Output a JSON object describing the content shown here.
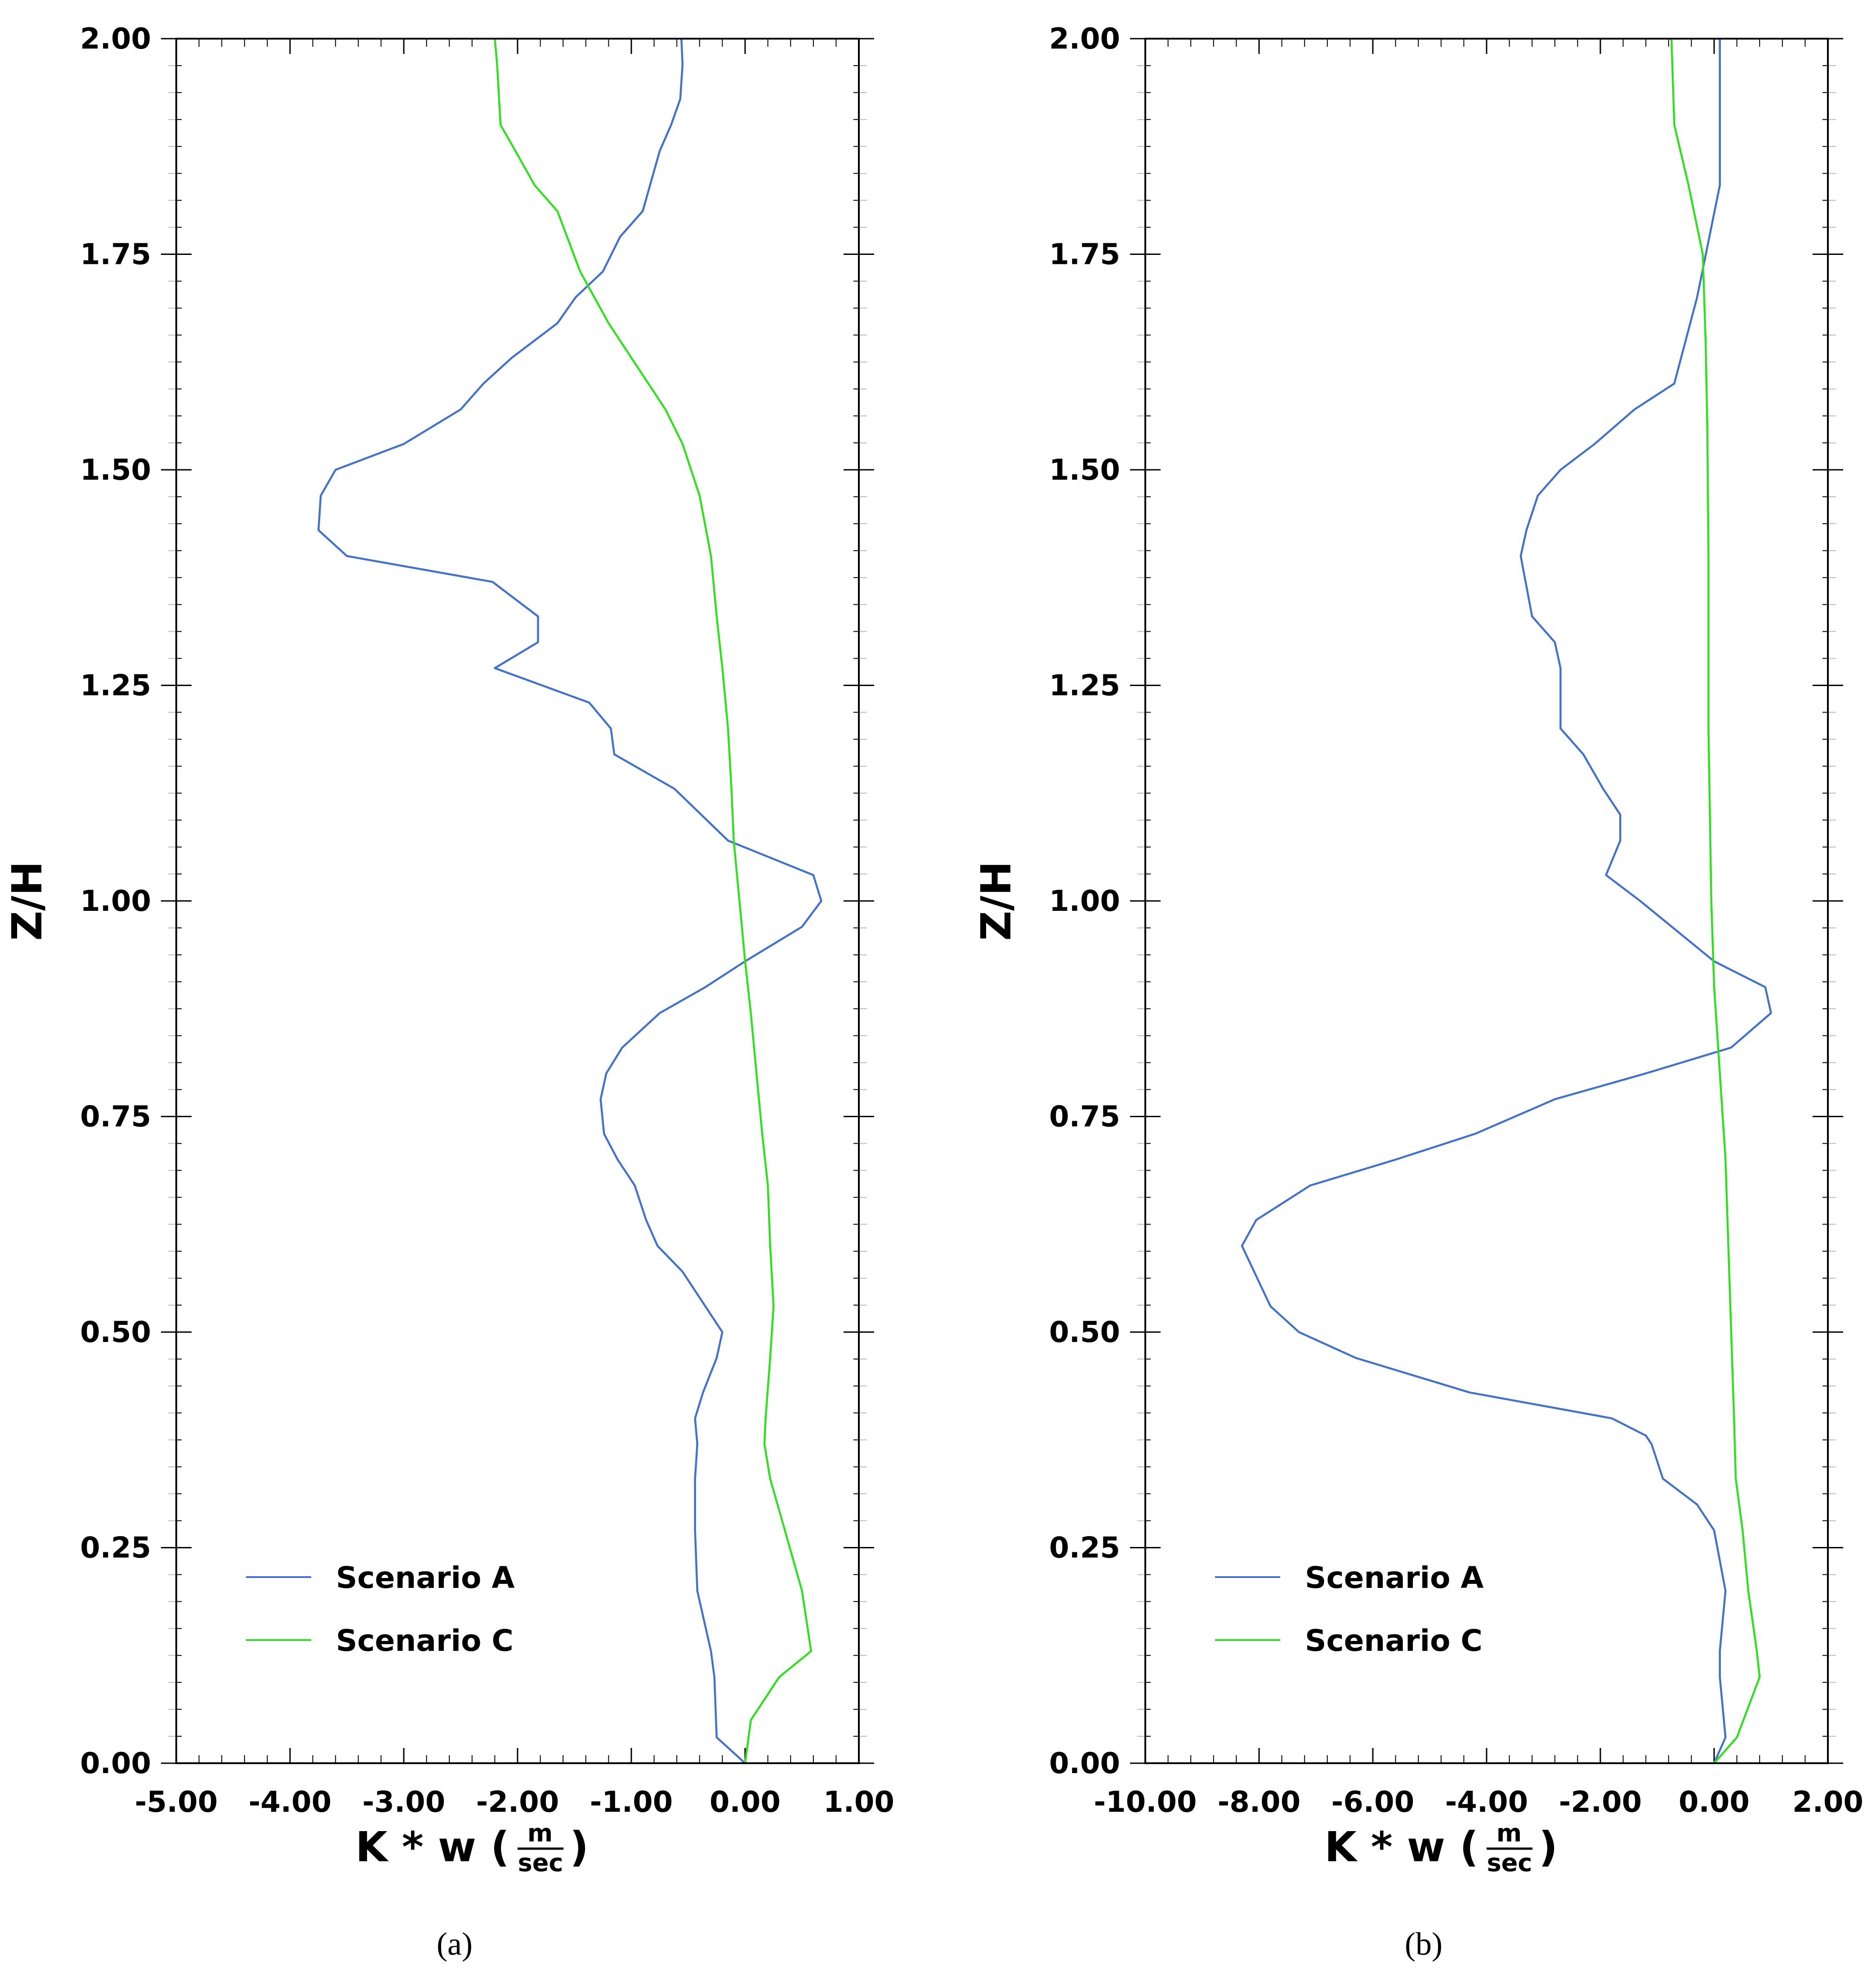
{
  "colors": {
    "scenario_a": "#4472C4",
    "scenario_c": "#33DD22",
    "frame": "#000000",
    "minor_tick": "#bbbbbb"
  },
  "chart_data": [
    {
      "type": "line",
      "caption": "(a)",
      "xlabel_prefix": "K * w (",
      "xlabel_unit_num": "m",
      "xlabel_unit_den": "sec",
      "xlabel_suffix": ")",
      "ylabel": "Z/H",
      "xlim": [
        -5.0,
        1.0
      ],
      "ylim": [
        0.0,
        2.0
      ],
      "x_ticks": [
        -5,
        -4,
        -3,
        -2,
        -1,
        0,
        1
      ],
      "x_tick_labels": [
        "-5.00",
        "-4.00",
        "-3.00",
        "-2.00",
        "-1.00",
        "0.00",
        "1.00"
      ],
      "y_ticks": [
        0,
        0.25,
        0.5,
        0.75,
        1.0,
        1.25,
        1.5,
        1.75,
        2.0
      ],
      "y_tick_labels": [
        "0.00",
        "0.25",
        "0.50",
        "0.75",
        "1.00",
        "1.25",
        "1.50",
        "1.75",
        "2.00"
      ],
      "legend": {
        "position": "lower-left",
        "entries": [
          "Scenario A",
          "Scenario C"
        ]
      },
      "series": [
        {
          "name": "Scenario A",
          "x": [
            0.0,
            -0.25,
            -0.27,
            -0.3,
            -0.42,
            -0.44,
            -0.44,
            -0.42,
            -0.44,
            -0.37,
            -0.25,
            -0.2,
            -0.35,
            -0.55,
            -0.77,
            -0.87,
            -0.97,
            -1.12,
            -1.24,
            -1.27,
            -1.22,
            -1.08,
            -0.75,
            -0.35,
            0.0,
            0.5,
            0.67,
            0.6,
            -0.15,
            -0.62,
            -1.15,
            -1.18,
            -1.37,
            -2.2,
            -1.82,
            -1.82,
            -2.22,
            -3.5,
            -3.75,
            -3.73,
            -3.6,
            -3.0,
            -2.5,
            -2.3,
            -2.05,
            -1.65,
            -1.49,
            -1.25,
            -1.1,
            -0.9,
            -0.75,
            -0.65,
            -0.57,
            -0.55,
            -0.56
          ],
          "y": [
            0.0,
            0.03,
            0.1,
            0.13,
            0.2,
            0.27,
            0.33,
            0.37,
            0.4,
            0.43,
            0.47,
            0.5,
            0.53,
            0.57,
            0.6,
            0.63,
            0.67,
            0.7,
            0.73,
            0.77,
            0.8,
            0.83,
            0.87,
            0.9,
            0.93,
            0.97,
            1.0,
            1.03,
            1.07,
            1.13,
            1.17,
            1.2,
            1.23,
            1.27,
            1.3,
            1.33,
            1.37,
            1.4,
            1.43,
            1.47,
            1.5,
            1.53,
            1.57,
            1.6,
            1.63,
            1.67,
            1.7,
            1.73,
            1.77,
            1.8,
            1.87,
            1.9,
            1.93,
            1.97,
            2.0
          ]
        },
        {
          "name": "Scenario C",
          "x": [
            0.0,
            0.05,
            0.3,
            0.58,
            0.5,
            0.35,
            0.22,
            0.17,
            0.18,
            0.22,
            0.25,
            0.22,
            0.2,
            0.15,
            0.1,
            0.05,
            0.0,
            -0.05,
            -0.1,
            -0.12,
            -0.15,
            -0.2,
            -0.25,
            -0.3,
            -0.4,
            -0.55,
            -0.7,
            -0.85,
            -1.0,
            -1.2,
            -1.45,
            -1.65,
            -1.85,
            -2.02,
            -2.15,
            -2.18,
            -2.2
          ],
          "y": [
            0.0,
            0.05,
            0.1,
            0.13,
            0.2,
            0.27,
            0.33,
            0.37,
            0.4,
            0.47,
            0.53,
            0.6,
            0.67,
            0.73,
            0.8,
            0.87,
            0.93,
            1.0,
            1.07,
            1.13,
            1.2,
            1.27,
            1.33,
            1.4,
            1.47,
            1.53,
            1.57,
            1.6,
            1.63,
            1.67,
            1.73,
            1.8,
            1.83,
            1.87,
            1.9,
            1.97,
            2.0
          ]
        }
      ]
    },
    {
      "type": "line",
      "caption": "(b)",
      "xlabel_prefix": "K * w (",
      "xlabel_unit_num": "m",
      "xlabel_unit_den": "sec",
      "xlabel_suffix": ")",
      "ylabel": "Z/H",
      "xlim": [
        -10.0,
        2.0
      ],
      "ylim": [
        0.0,
        2.0
      ],
      "x_ticks": [
        -10,
        -8,
        -6,
        -4,
        -2,
        0,
        2
      ],
      "x_tick_labels": [
        "-10.00",
        "-8.00",
        "-6.00",
        "-4.00",
        "-2.00",
        "0.00",
        "2.00"
      ],
      "y_ticks": [
        0,
        0.25,
        0.5,
        0.75,
        1.0,
        1.25,
        1.5,
        1.75,
        2.0
      ],
      "y_tick_labels": [
        "0.00",
        "0.25",
        "0.50",
        "0.75",
        "1.00",
        "1.25",
        "1.50",
        "1.75",
        "2.00"
      ],
      "legend": {
        "position": "lower-left",
        "entries": [
          "Scenario A",
          "Scenario C"
        ]
      },
      "series": [
        {
          "name": "Scenario A",
          "x": [
            0.0,
            0.2,
            0.1,
            0.1,
            0.2,
            0.0,
            -0.3,
            -0.9,
            -1.1,
            -1.2,
            -1.8,
            -4.3,
            -6.3,
            -7.3,
            -7.8,
            -8.3,
            -8.05,
            -7.1,
            -5.6,
            -4.2,
            -2.8,
            -1.2,
            0.3,
            1.0,
            0.9,
            0.0,
            -1.3,
            -1.9,
            -1.65,
            -1.65,
            -1.95,
            -2.3,
            -2.7,
            -2.7,
            -2.8,
            -3.2,
            -3.4,
            -3.3,
            -3.1,
            -2.7,
            -2.1,
            -1.4,
            -0.7,
            -0.3,
            0.1,
            0.1
          ],
          "y": [
            0.0,
            0.03,
            0.1,
            0.13,
            0.2,
            0.27,
            0.3,
            0.33,
            0.37,
            0.38,
            0.4,
            0.43,
            0.47,
            0.5,
            0.53,
            0.6,
            0.63,
            0.67,
            0.7,
            0.73,
            0.77,
            0.8,
            0.83,
            0.87,
            0.9,
            0.93,
            1.0,
            1.03,
            1.07,
            1.1,
            1.13,
            1.17,
            1.2,
            1.27,
            1.3,
            1.33,
            1.4,
            1.43,
            1.47,
            1.5,
            1.53,
            1.57,
            1.6,
            1.7,
            1.83,
            2.0
          ]
        },
        {
          "name": "Scenario C",
          "x": [
            0.0,
            0.4,
            0.8,
            0.75,
            0.6,
            0.5,
            0.38,
            0.35,
            0.3,
            0.25,
            0.2,
            0.1,
            0.0,
            -0.05,
            -0.1,
            -0.1,
            -0.12,
            -0.15,
            -0.2,
            -0.45,
            -0.7,
            -0.75
          ],
          "y": [
            0.0,
            0.03,
            0.1,
            0.13,
            0.2,
            0.27,
            0.33,
            0.4,
            0.5,
            0.6,
            0.7,
            0.8,
            0.9,
            1.0,
            1.2,
            1.4,
            1.55,
            1.65,
            1.75,
            1.83,
            1.9,
            2.0
          ]
        }
      ]
    }
  ]
}
